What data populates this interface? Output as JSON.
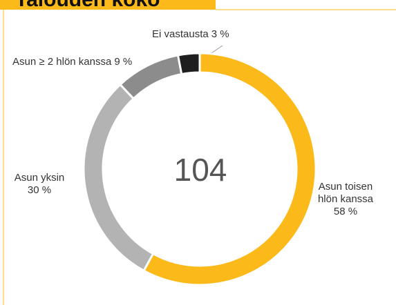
{
  "chart_data": {
    "type": "donut",
    "title": "Talouden koko",
    "total": 104,
    "categories": [
      "Asun toisen hlön kanssa",
      "Asun yksin",
      "Asun ≥ 2 hlön kanssa",
      "Ei vastausta"
    ],
    "values": [
      58,
      30,
      9,
      3
    ],
    "value_labels": [
      "58 %",
      "30 %",
      "9 %",
      "3 %"
    ],
    "colors": [
      "#fbb91a",
      "#b3b3b3",
      "#8c8c8c",
      "#1e1e1e"
    ]
  }
}
